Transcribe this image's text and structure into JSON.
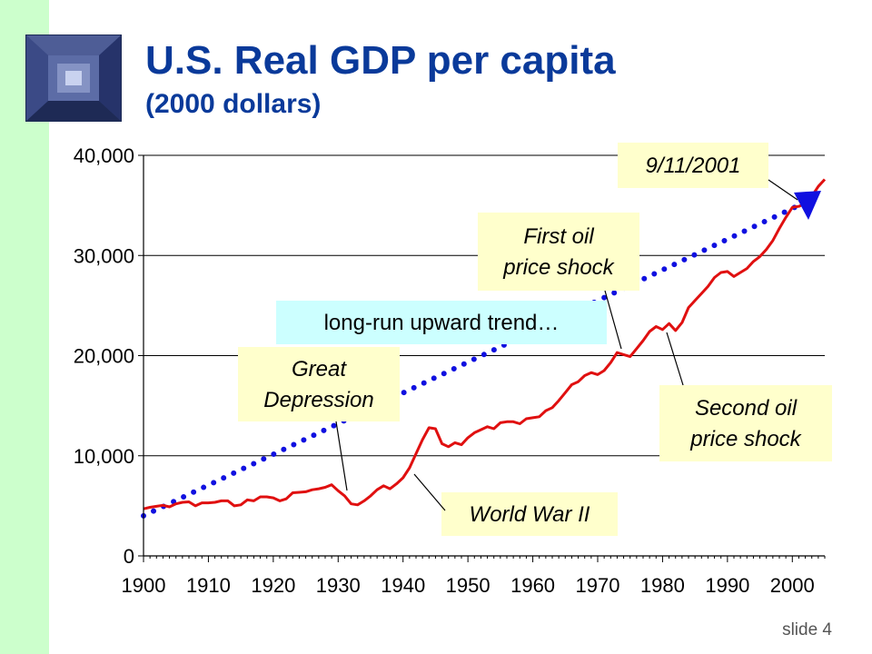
{
  "title": "U.S. Real GDP per capita",
  "subtitle": "(2000 dollars)",
  "slide_label": "slide 4",
  "colors": {
    "actual": "#e01010",
    "trend": "#1010e0",
    "title": "#0a3a9a",
    "callout": "#ffffcc",
    "trend_callout": "#ccffff",
    "sidebar": "#ccffcc"
  },
  "chart_data": {
    "type": "line",
    "title": "",
    "xlabel": "",
    "ylabel": "",
    "xlim": [
      1900,
      2005
    ],
    "ylim": [
      0,
      40000
    ],
    "grid": true,
    "x_ticks": [
      "1900",
      "1910",
      "1920",
      "1930",
      "1940",
      "1950",
      "1960",
      "1970",
      "1980",
      "1990",
      "2000"
    ],
    "y_ticks": [
      "0",
      "10,000",
      "20,000",
      "30,000",
      "40,000"
    ],
    "series": [
      {
        "style": "solid",
        "color": "#e01010",
        "x": [
          1900,
          1901,
          1902,
          1903,
          1904,
          1905,
          1906,
          1907,
          1908,
          1909,
          1910,
          1911,
          1912,
          1913,
          1914,
          1915,
          1916,
          1917,
          1918,
          1919,
          1920,
          1921,
          1922,
          1923,
          1924,
          1925,
          1926,
          1927,
          1928,
          1929,
          1930,
          1931,
          1932,
          1933,
          1934,
          1935,
          1936,
          1937,
          1938,
          1939,
          1940,
          1941,
          1942,
          1943,
          1944,
          1945,
          1946,
          1947,
          1948,
          1949,
          1950,
          1951,
          1952,
          1953,
          1954,
          1955,
          1956,
          1957,
          1958,
          1959,
          1960,
          1961,
          1962,
          1963,
          1964,
          1965,
          1966,
          1967,
          1968,
          1969,
          1970,
          1971,
          1972,
          1973,
          1974,
          1975,
          1976,
          1977,
          1978,
          1979,
          1980,
          1981,
          1982,
          1983,
          1984,
          1985,
          1986,
          1987,
          1988,
          1989,
          1990,
          1991,
          1992,
          1993,
          1994,
          1995,
          1996,
          1997,
          1998,
          1999,
          2000,
          2001,
          2002,
          2003,
          2004,
          2005
        ],
        "values": [
          4700,
          4850,
          4950,
          5050,
          4900,
          5200,
          5350,
          5400,
          5000,
          5300,
          5300,
          5350,
          5500,
          5500,
          5000,
          5100,
          5600,
          5500,
          5900,
          5900,
          5800,
          5500,
          5700,
          6300,
          6350,
          6400,
          6600,
          6700,
          6850,
          7100,
          6500,
          6000,
          5200,
          5100,
          5500,
          6000,
          6600,
          7000,
          6700,
          7200,
          7800,
          8800,
          10200,
          11600,
          12800,
          12700,
          11200,
          10900,
          11300,
          11100,
          11800,
          12300,
          12600,
          12900,
          12700,
          13300,
          13400,
          13400,
          13200,
          13700,
          13800,
          13900,
          14500,
          14800,
          15500,
          16300,
          17100,
          17400,
          18000,
          18300,
          18100,
          18500,
          19300,
          20300,
          20100,
          19900,
          20700,
          21500,
          22400,
          22900,
          22600,
          23200,
          22500,
          23300,
          24800,
          25500,
          26200,
          26900,
          27800,
          28300,
          28400,
          27900,
          28300,
          28700,
          29400,
          29900,
          30600,
          31500,
          32700,
          33800,
          34800,
          34900,
          35200,
          35900,
          36900,
          37600
        ]
      },
      {
        "style": "dotted",
        "color": "#1010e0",
        "x": [
          1900,
          2001
        ],
        "values": [
          4000,
          35000
        ]
      }
    ],
    "annotations": [
      {
        "text": [
          "9/11/2001"
        ],
        "italic": true
      },
      {
        "text": [
          "First oil",
          "price shock"
        ],
        "italic": true
      },
      {
        "text": [
          "long-run upward trend…"
        ],
        "italic": false
      },
      {
        "text": [
          "Great",
          "Depression"
        ],
        "italic": true
      },
      {
        "text": [
          "Second oil",
          "price shock"
        ],
        "italic": true
      },
      {
        "text": [
          "World War II"
        ],
        "italic": true
      }
    ]
  }
}
